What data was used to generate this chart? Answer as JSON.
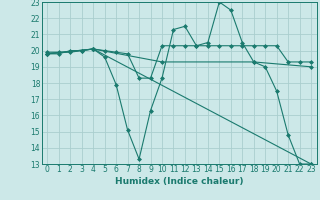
{
  "xlabel": "Humidex (Indice chaleur)",
  "xlim": [
    -0.5,
    23.5
  ],
  "ylim": [
    13,
    23
  ],
  "yticks": [
    13,
    14,
    15,
    16,
    17,
    18,
    19,
    20,
    21,
    22,
    23
  ],
  "xticks": [
    0,
    1,
    2,
    3,
    4,
    5,
    6,
    7,
    8,
    9,
    10,
    11,
    12,
    13,
    14,
    15,
    16,
    17,
    18,
    19,
    20,
    21,
    22,
    23
  ],
  "line_color": "#1a7a6e",
  "bg_color": "#cce8e8",
  "grid_color": "#aacece",
  "lines": [
    {
      "x": [
        0,
        1,
        2,
        3,
        4,
        5,
        6,
        7,
        8,
        9,
        10,
        11,
        12,
        13,
        14,
        15,
        16,
        17,
        18,
        19,
        20,
        21,
        22,
        23
      ],
      "y": [
        19.8,
        19.8,
        20.0,
        20.0,
        20.1,
        19.6,
        17.9,
        15.1,
        13.3,
        16.3,
        18.3,
        21.3,
        21.5,
        20.3,
        20.5,
        23.0,
        22.5,
        20.5,
        19.3,
        19.0,
        17.5,
        14.8,
        13.0,
        13.0
      ]
    },
    {
      "x": [
        0,
        1,
        2,
        3,
        4,
        5,
        6,
        7,
        8,
        9,
        10,
        11,
        12,
        13,
        14,
        15,
        16,
        17,
        18,
        19,
        20,
        21,
        22,
        23
      ],
      "y": [
        19.9,
        19.9,
        19.9,
        20.0,
        20.1,
        20.0,
        19.9,
        19.8,
        18.3,
        18.3,
        20.3,
        20.3,
        20.3,
        20.3,
        20.3,
        20.3,
        20.3,
        20.3,
        20.3,
        20.3,
        20.3,
        19.3,
        19.3,
        19.3
      ]
    },
    {
      "x": [
        0,
        4,
        23
      ],
      "y": [
        19.8,
        20.1,
        13.0
      ]
    },
    {
      "x": [
        0,
        4,
        10,
        18,
        23
      ],
      "y": [
        19.8,
        20.1,
        19.3,
        19.3,
        19.0
      ]
    }
  ],
  "markersize": 2.0
}
